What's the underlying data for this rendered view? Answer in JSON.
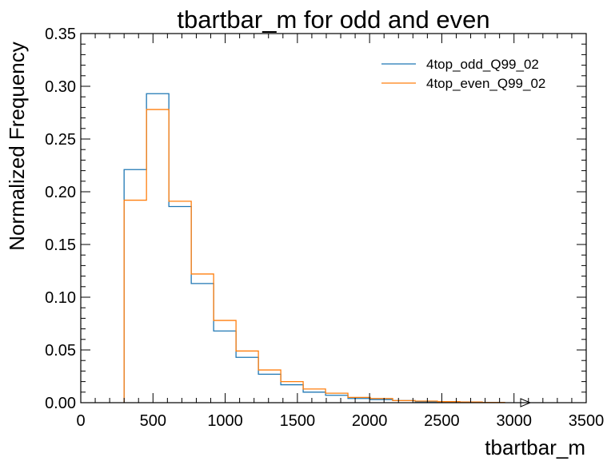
{
  "chart_data": {
    "type": "histogram",
    "title": "tbartbar_m for odd and even",
    "xlabel": "tbartbar_m",
    "ylabel": "Normalized Frequency",
    "xlim": [
      0,
      3500
    ],
    "ylim": [
      0,
      0.35
    ],
    "x_ticks": [
      0,
      500,
      1000,
      1500,
      2000,
      2500,
      3000,
      3500
    ],
    "x_tick_labels": [
      "0",
      "500",
      "1000",
      "1500",
      "2000",
      "2500",
      "3000",
      "3500"
    ],
    "y_ticks": [
      0.0,
      0.05,
      0.1,
      0.15,
      0.2,
      0.25,
      0.3,
      0.35
    ],
    "y_tick_labels": [
      "0.00",
      "0.05",
      "0.10",
      "0.15",
      "0.20",
      "0.25",
      "0.30",
      "0.35"
    ],
    "bin_edges": [
      300,
      455,
      610,
      765,
      920,
      1075,
      1230,
      1385,
      1540,
      1695,
      1850,
      2005,
      2160,
      2315,
      2470,
      2625,
      2780,
      2935
    ],
    "series": [
      {
        "name": "4top_odd_Q99_02",
        "color": "#1f77b4",
        "values": [
          0.221,
          0.293,
          0.186,
          0.113,
          0.068,
          0.043,
          0.027,
          0.017,
          0.01,
          0.007,
          0.004,
          0.003,
          0.002,
          0.001,
          0.001,
          0.0005,
          0.0003
        ]
      },
      {
        "name": "4top_even_Q99_02",
        "color": "#ff7f0e",
        "values": [
          0.192,
          0.278,
          0.191,
          0.122,
          0.078,
          0.049,
          0.031,
          0.02,
          0.013,
          0.009,
          0.005,
          0.004,
          0.002,
          0.0015,
          0.001,
          0.0006,
          0.0003
        ]
      }
    ],
    "legend_position": "top-right",
    "grid": false
  }
}
